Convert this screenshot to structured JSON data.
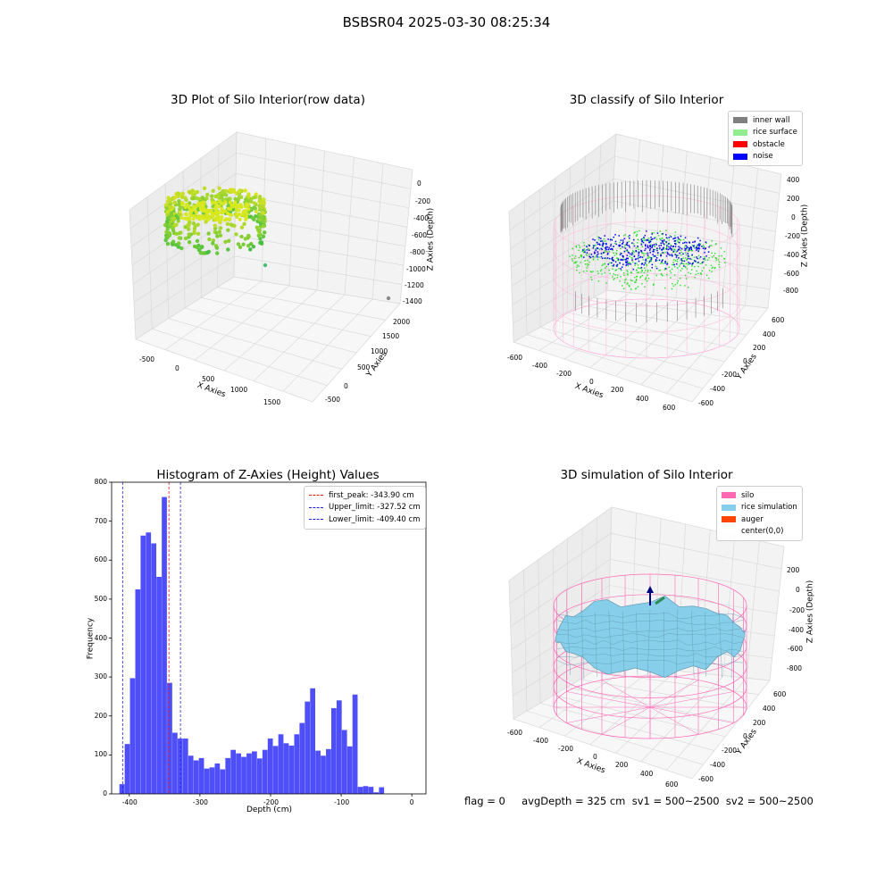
{
  "suptitle": "BSBSR04 2025-03-30 08:25:34",
  "footer_text": "flag = 0     avgDepth = 325 cm  sv1 = 500~2500  sv2 = 500~2500",
  "colors": {
    "hist_bar": "#4f4ff9",
    "first_peak": "#e31a1c",
    "limits": "#1f1fe0",
    "inner_wall": "#808080",
    "rice_surface": "#90ee90",
    "obstacle": "#ff0000",
    "noise": "#0000ff",
    "silo": "#ff69b4",
    "rice_simulation": "#87ceeb",
    "auger": "#ff4500"
  },
  "chart_data": [
    {
      "type": "scatter",
      "title": "3D Plot of Silo Interior(row data)",
      "xlabel": "X Axies",
      "ylabel": "Y Axies",
      "zlabel": "Z Axies (Depth)",
      "x_ticks": [
        "-500",
        "0",
        "500",
        "1000",
        "1500"
      ],
      "y_ticks": [
        "-500",
        "0",
        "500",
        "1000",
        "1500",
        "2000"
      ],
      "z_ticks": [
        "0",
        "-200",
        "-400",
        "-600",
        "-800",
        "-1000",
        "-1200",
        "-1400"
      ],
      "xlim": [
        -650,
        1800
      ],
      "ylim": [
        -650,
        2100
      ],
      "zlim": [
        -1450,
        50
      ],
      "grid": true
    },
    {
      "type": "scatter",
      "title": "3D classify of Silo Interior",
      "xlabel": "X Axies",
      "ylabel": "Y Axies",
      "zlabel": "Z Axies (Depth)",
      "x_ticks": [
        "-600",
        "-400",
        "-200",
        "0",
        "200",
        "400",
        "600"
      ],
      "y_ticks": [
        "-600",
        "-400",
        "-200",
        "0",
        "200",
        "400",
        "600"
      ],
      "z_ticks": [
        "400",
        "200",
        "0",
        "-200",
        "-400",
        "-600",
        "-800"
      ],
      "xlim": [
        -650,
        650
      ],
      "ylim": [
        -650,
        650
      ],
      "zlim": [
        -900,
        420
      ],
      "legend": [
        "inner wall",
        "rice surface",
        "obstacle",
        "noise"
      ],
      "legend_loc": "upper right",
      "grid": true
    },
    {
      "type": "bar",
      "title": "Histogram of Z-Axies (Height) Values",
      "xlabel": "Depth (cm)",
      "ylabel": "Frequency",
      "xlim": [
        -425,
        20
      ],
      "ylim": [
        0,
        800
      ],
      "x_ticks": [
        -400,
        -300,
        -200,
        -100,
        0
      ],
      "y_ticks": [
        0,
        100,
        200,
        300,
        400,
        500,
        600,
        700,
        800
      ],
      "bin_start": -414,
      "bin_width": 7.5,
      "values": [
        25,
        128,
        297,
        525,
        663,
        671,
        643,
        557,
        762,
        285,
        157,
        142,
        142,
        98,
        86,
        92,
        65,
        68,
        78,
        63,
        92,
        113,
        104,
        95,
        104,
        109,
        91,
        113,
        142,
        123,
        153,
        130,
        124,
        153,
        182,
        237,
        271,
        111,
        98,
        115,
        220,
        240,
        164,
        122,
        255,
        18,
        20,
        18,
        4,
        17
      ],
      "vlines": [
        {
          "label": "first_peak: -343.90 cm",
          "x": -343.9,
          "color": "#e31a1c"
        },
        {
          "label": "Upper_limit: -327.52 cm",
          "x": -327.52,
          "color": "#1f1fe0"
        },
        {
          "label": "Lower_limit: -409.40 cm",
          "x": -409.4,
          "color": "#1f1fe0"
        }
      ],
      "legend_loc": "upper right"
    },
    {
      "type": "surface",
      "title": "3D simulation of Silo Interior",
      "xlabel": "X Axies",
      "ylabel": "Y Axies",
      "zlabel": "Z Axies (Depth)",
      "x_ticks": [
        "-600",
        "-400",
        "-200",
        "0",
        "200",
        "400",
        "600"
      ],
      "y_ticks": [
        "-600",
        "-400",
        "-200",
        "0",
        "200",
        "400",
        "600"
      ],
      "z_ticks": [
        "200",
        "0",
        "-200",
        "-400",
        "-600",
        "-800"
      ],
      "xlim": [
        -650,
        650
      ],
      "ylim": [
        -650,
        650
      ],
      "zlim": [
        -900,
        300
      ],
      "legend": [
        "silo",
        "rice simulation",
        "auger",
        "center(0,0)"
      ],
      "legend_loc": "upper right",
      "grid": true
    }
  ]
}
